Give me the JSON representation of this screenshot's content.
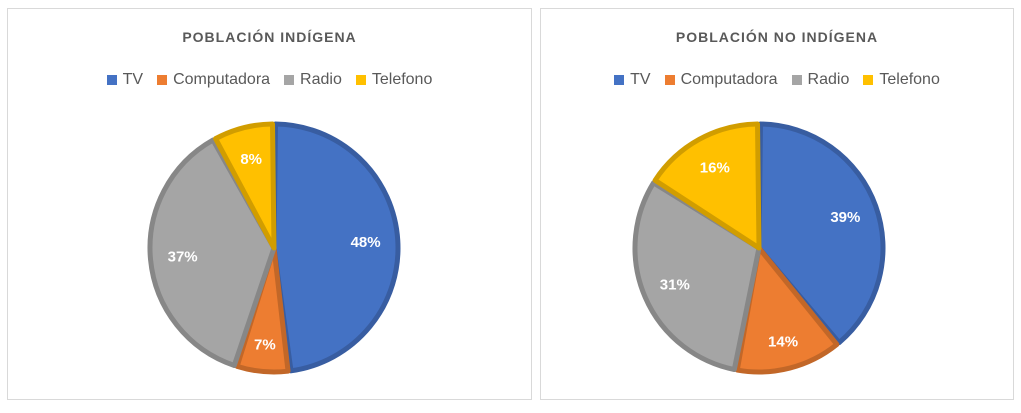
{
  "chart_data": [
    {
      "type": "pie",
      "title": "POBLACIÓN INDÍGENA",
      "categories": [
        "TV",
        "Computadora",
        "Radio",
        "Telefono"
      ],
      "values": [
        48,
        7,
        37,
        8
      ],
      "labels": [
        "48%",
        "7%",
        "37%",
        "8%"
      ],
      "colors": [
        "#4472C4",
        "#ED7D31",
        "#A5A5A5",
        "#FFC000"
      ],
      "legend": "top"
    },
    {
      "type": "pie",
      "title": "POBLACIÓN NO INDÍGENA",
      "categories": [
        "TV",
        "Computadora",
        "Radio",
        "Telefono"
      ],
      "values": [
        39,
        14,
        31,
        16
      ],
      "labels": [
        "39%",
        "14%",
        "31%",
        "16%"
      ],
      "colors": [
        "#4472C4",
        "#ED7D31",
        "#A5A5A5",
        "#FFC000"
      ],
      "legend": "top"
    }
  ]
}
